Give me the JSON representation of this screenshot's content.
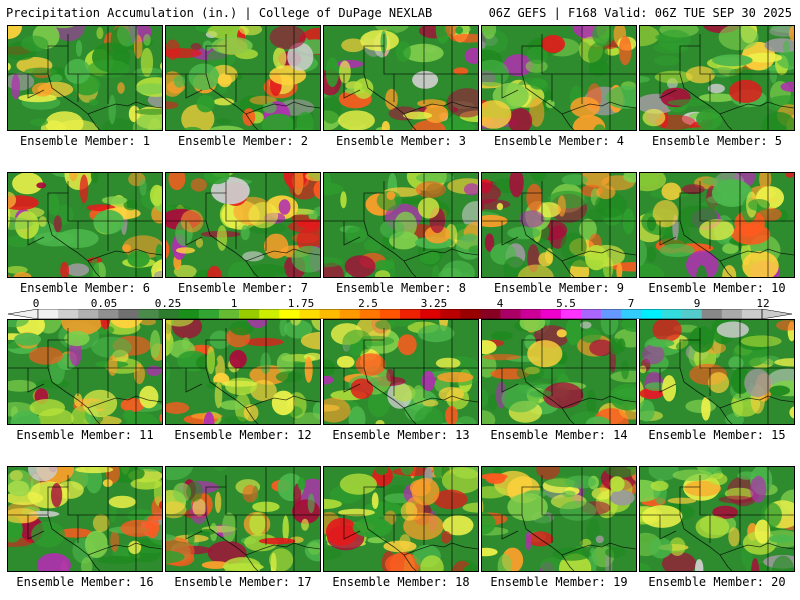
{
  "header": {
    "left": "Precipitation Accumulation (in.) | College of DuPage NEXLAB",
    "right": "06Z GEFS | F168 Valid: 06Z TUE SEP 30 2025"
  },
  "panels": [
    {
      "label": "Ensemble Member: 1",
      "seed": 11
    },
    {
      "label": "Ensemble Member: 2",
      "seed": 23
    },
    {
      "label": "Ensemble Member: 3",
      "seed": 37
    },
    {
      "label": "Ensemble Member: 4",
      "seed": 41
    },
    {
      "label": "Ensemble Member: 5",
      "seed": 53
    },
    {
      "label": "Ensemble Member: 6",
      "seed": 67
    },
    {
      "label": "Ensemble Member: 7",
      "seed": 71
    },
    {
      "label": "Ensemble Member: 8",
      "seed": 83
    },
    {
      "label": "Ensemble Member: 9",
      "seed": 97
    },
    {
      "label": "Ensemble Member: 10",
      "seed": 101
    },
    {
      "label": "Ensemble Member: 11",
      "seed": 113
    },
    {
      "label": "Ensemble Member: 12",
      "seed": 127
    },
    {
      "label": "Ensemble Member: 13",
      "seed": 131
    },
    {
      "label": "Ensemble Member: 14",
      "seed": 149
    },
    {
      "label": "Ensemble Member: 15",
      "seed": 151
    },
    {
      "label": "Ensemble Member: 16",
      "seed": 163
    },
    {
      "label": "Ensemble Member: 17",
      "seed": 173
    },
    {
      "label": "Ensemble Member: 18",
      "seed": 181
    },
    {
      "label": "Ensemble Member: 19",
      "seed": 191
    },
    {
      "label": "Ensemble Member: 20",
      "seed": 199
    }
  ],
  "colorbar": {
    "labels": [
      "0",
      "0.05",
      "0.25",
      "1",
      "1.75",
      "2.5",
      "3.25",
      "4",
      "5.5",
      "7",
      "9",
      "12"
    ],
    "colors": [
      "#f0f0f0",
      "#d0d0d0",
      "#b0b0b0",
      "#909090",
      "#707070",
      "#4a8a4a",
      "#2e7d2e",
      "#1a8f1a",
      "#33a533",
      "#66bb33",
      "#99cc00",
      "#ccee00",
      "#ffff00",
      "#ffdd00",
      "#ffbb00",
      "#ff9900",
      "#ff7700",
      "#ff5500",
      "#ee2200",
      "#dd0000",
      "#bb0000",
      "#990000",
      "#880022",
      "#aa0066",
      "#cc0099",
      "#ee00cc",
      "#ff33ff",
      "#aa66ff",
      "#6699ff",
      "#33ccff",
      "#00eeff",
      "#33dddd",
      "#55cccc",
      "#888888",
      "#aaaaaa",
      "#cccccc"
    ]
  }
}
